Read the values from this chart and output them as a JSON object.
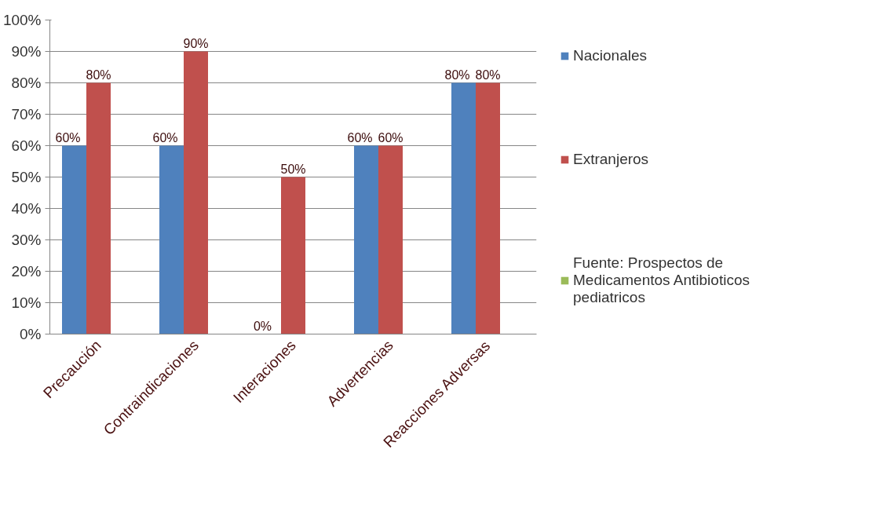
{
  "chart_data": {
    "type": "bar",
    "categories": [
      "Precaución",
      "Contraindicaciones",
      "Interaciones",
      "Advertencias",
      "Reacciones Adversas"
    ],
    "series": [
      {
        "name": "Nacionales",
        "color": "#4f81bd",
        "values": [
          60,
          60,
          0,
          60,
          80
        ]
      },
      {
        "name": "Extranjeros",
        "color": "#c0504d",
        "values": [
          80,
          90,
          50,
          60,
          80
        ]
      },
      {
        "name": "Fuente: Prospectos de Medicamentos Antibioticos pediatricos",
        "color": "#9bbb59",
        "values": [
          null,
          null,
          null,
          null,
          null
        ]
      }
    ],
    "ylim": [
      0,
      100
    ],
    "yticks": [
      {
        "value": 0,
        "label": "0%"
      },
      {
        "value": 10,
        "label": "10%"
      },
      {
        "value": 20,
        "label": "20%"
      },
      {
        "value": 30,
        "label": "30%"
      },
      {
        "value": 40,
        "label": "40%"
      },
      {
        "value": 50,
        "label": "50%"
      },
      {
        "value": 60,
        "label": "60%"
      },
      {
        "value": 70,
        "label": "70%"
      },
      {
        "value": 80,
        "label": "80%"
      },
      {
        "value": 90,
        "label": "90%"
      },
      {
        "value": 100,
        "label": "100%"
      }
    ],
    "value_labels": [
      [
        "60%",
        "60%",
        "0%",
        "60%",
        "80%"
      ],
      [
        "80%",
        "90%",
        "50%",
        "60%",
        "80%"
      ],
      [
        null,
        null,
        null,
        null,
        null
      ]
    ],
    "grid": "y",
    "legend": "right"
  }
}
